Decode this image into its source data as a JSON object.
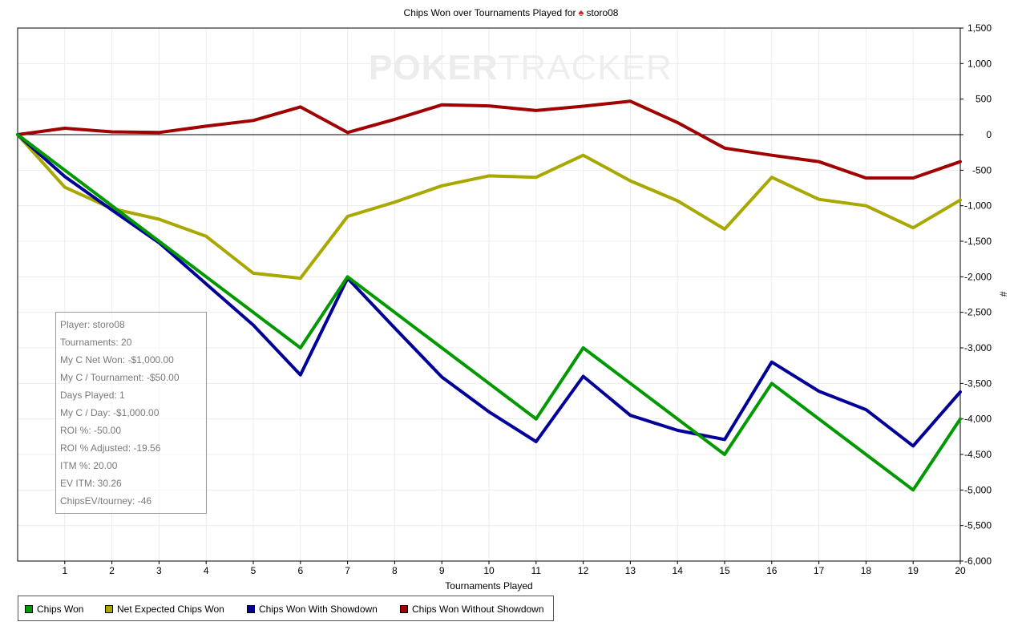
{
  "title": {
    "prefix": "Chips Won over Tournaments Played for",
    "player": "storo08",
    "icon": "spade-icon"
  },
  "watermark": {
    "bold": "POKER",
    "thin": "TRACKER"
  },
  "stats_box": [
    "Player: storo08",
    "Tournaments: 20",
    "My C Net Won: -$1,000.00",
    "My C / Tournament: -$50.00",
    "Days Played: 1",
    "My C / Day: -$1,000.00",
    "ROI %: -50.00",
    "ROI % Adjusted: -19.56",
    "ITM %: 20.00",
    "EV ITM: 30.26",
    "ChipsEV/tourney: -46"
  ],
  "chart_data": {
    "type": "line",
    "title": "Chips Won over Tournaments Played for storo08",
    "xlabel": "Tournaments Played",
    "ylabel": "#",
    "xlim": [
      0,
      20
    ],
    "ylim": [
      -6000,
      1500
    ],
    "x_ticks": [
      1,
      2,
      3,
      4,
      5,
      6,
      7,
      8,
      9,
      10,
      11,
      12,
      13,
      14,
      15,
      16,
      17,
      18,
      19,
      20
    ],
    "y_ticks": [
      1500,
      1000,
      500,
      0,
      -500,
      -1000,
      -1500,
      -2000,
      -2500,
      -3000,
      -3500,
      -4000,
      -4500,
      -5000,
      -5500,
      -6000
    ],
    "y_tick_labels": [
      "1,500",
      "1,000",
      "500",
      "0",
      "-500",
      "-1,000",
      "-1,500",
      "-2,000",
      "-2,500",
      "-3,000",
      "-3,500",
      "-4,000",
      "-4,500",
      "-5,000",
      "-5,500",
      "-6,000"
    ],
    "y_axis_side": "right",
    "grid": true,
    "legend_position": "bottom-left",
    "x": [
      0,
      1,
      2,
      3,
      4,
      5,
      6,
      7,
      8,
      9,
      10,
      11,
      12,
      13,
      14,
      15,
      16,
      17,
      18,
      19,
      20
    ],
    "series": [
      {
        "name": "Chips Won Without Showdown",
        "color": "#a00000",
        "values": [
          0,
          90,
          40,
          30,
          120,
          200,
          390,
          30,
          215,
          420,
          405,
          340,
          400,
          470,
          170,
          -190,
          -290,
          -380,
          -610,
          -610,
          -380
        ]
      },
      {
        "name": "Net Expected Chips Won",
        "color": "#a8a800",
        "values": [
          0,
          -740,
          -1040,
          -1190,
          -1430,
          -1950,
          -2020,
          -1150,
          -950,
          -720,
          -580,
          -600,
          -290,
          -650,
          -930,
          -1330,
          -600,
          -910,
          -1000,
          -1310,
          -920
        ]
      },
      {
        "name": "Chips Won With Showdown",
        "color": "#000099",
        "values": [
          0,
          -590,
          -1060,
          -1520,
          -2100,
          -2680,
          -3380,
          -2020,
          -2720,
          -3410,
          -3900,
          -4320,
          -3400,
          -3950,
          -4160,
          -4290,
          -3200,
          -3610,
          -3870,
          -4380,
          -3620
        ]
      },
      {
        "name": "Chips Won",
        "color": "#009900",
        "values": [
          0,
          -500,
          -1000,
          -1500,
          -2000,
          -2500,
          -3000,
          -2000,
          -2500,
          -3000,
          -3500,
          -4000,
          -3000,
          -3500,
          -4000,
          -4500,
          -3500,
          -4000,
          -4500,
          -5000,
          -4000
        ]
      }
    ],
    "legend_order": [
      "Chips Won",
      "Net Expected Chips Won",
      "Chips Won With Showdown",
      "Chips Won Without Showdown"
    ]
  },
  "legend": [
    {
      "label": "Chips Won",
      "color": "#009900"
    },
    {
      "label": "Net Expected Chips Won",
      "color": "#a8a800"
    },
    {
      "label": "Chips Won With Showdown",
      "color": "#000099"
    },
    {
      "label": "Chips Won Without Showdown",
      "color": "#a00000"
    }
  ]
}
